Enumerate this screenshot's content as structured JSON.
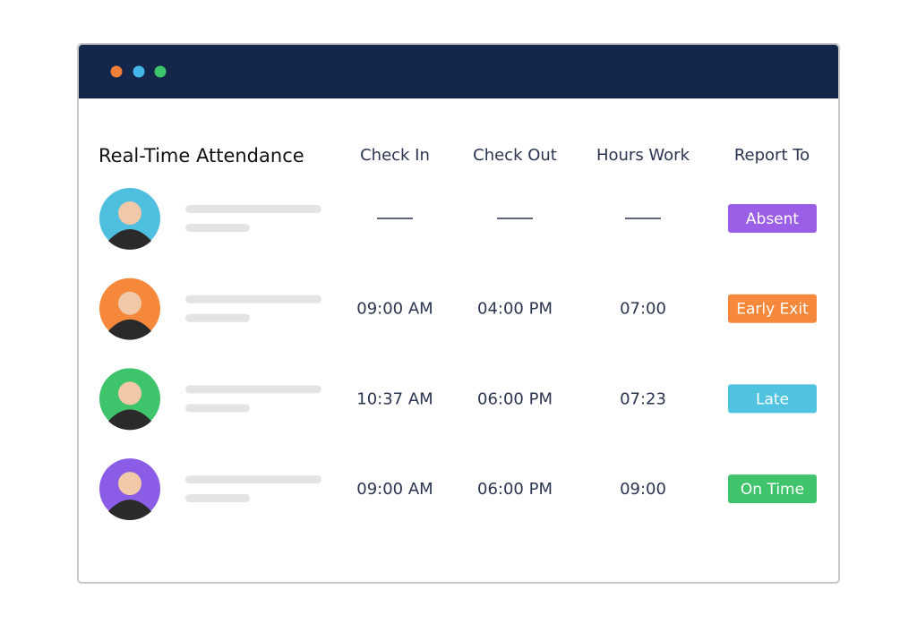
{
  "header": {
    "title": "Real-Time Attendance",
    "columns": [
      "Check In",
      "Check Out",
      "Hours Work",
      "Report To"
    ]
  },
  "table": {
    "rows": [
      {
        "check_in": null,
        "check_out": null,
        "hours": null,
        "status": "Absent",
        "status_color": "#9b5ee6",
        "avatar_color": "#4fbfe0"
      },
      {
        "check_in": "09:00 AM",
        "check_out": "04:00 PM",
        "hours": "07:00",
        "status": "Early Exit",
        "status_color": "#f5883a",
        "avatar_color": "#f5883a"
      },
      {
        "check_in": "10:37 AM",
        "check_out": "06:00 PM",
        "hours": "07:23",
        "status": "Late",
        "status_color": "#4fc3e0",
        "avatar_color": "#3fc46c"
      },
      {
        "check_in": "09:00 AM",
        "check_out": "06:00 PM",
        "hours": "09:00",
        "status": "On Time",
        "status_color": "#3fc46c",
        "avatar_color": "#8b5ce6"
      }
    ]
  }
}
